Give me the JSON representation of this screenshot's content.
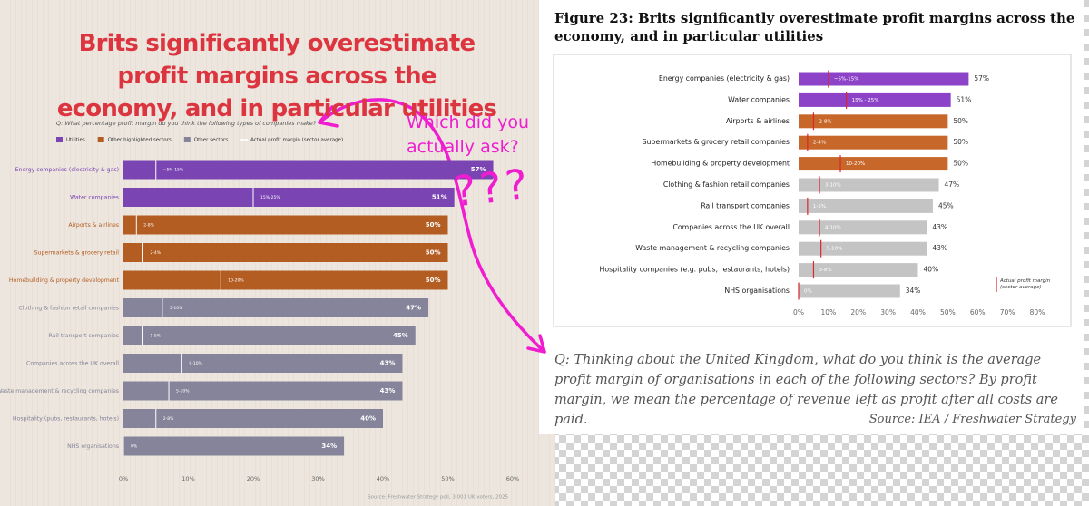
{
  "chart_data": [
    {
      "type": "bar",
      "horizontal": true,
      "title": "Brits significantly overestimate profit margins across the economy, and in particular utilities",
      "subtitle": "Q: What percentage profit margin do you think the following types of companies make?",
      "legend": [
        {
          "name": "Utilities",
          "color": "#7a45b3"
        },
        {
          "name": "Other highlighted sectors",
          "color": "#b35d22"
        },
        {
          "name": "Other sectors",
          "color": "#85849a"
        },
        {
          "name": "Actual profit margin (sector average)",
          "color": "#ffffff"
        }
      ],
      "categories": [
        "Energy companies (electricity & gas)",
        "Water companies",
        "Airports & airlines",
        "Supermarkets & grocery retail",
        "Homebuilding & property development",
        "Clothing & fashion retail companies",
        "Rail transport companies",
        "Companies across the UK overall",
        "Waste management & recycling companies",
        "Hospitality (pubs, restaurants, hotels)",
        "NHS organisations"
      ],
      "values": [
        57,
        51,
        50,
        50,
        50,
        47,
        45,
        43,
        43,
        40,
        34
      ],
      "value_labels": [
        "57%",
        "51%",
        "50%",
        "50%",
        "50%",
        "47%",
        "45%",
        "43%",
        "43%",
        "40%",
        "34%"
      ],
      "range_labels": [
        "~5%-15%",
        "15%-25%",
        "2-8%",
        "2-4%",
        "10-20%",
        "5-10%",
        "1-5%",
        "9-10%",
        "5-10%",
        "2-8%",
        "0%"
      ],
      "actual_margin": [
        5,
        20,
        2,
        3,
        15,
        6,
        3,
        9,
        7,
        5,
        0
      ],
      "colors": [
        "#7a45b3",
        "#7a45b3",
        "#b35d22",
        "#b35d22",
        "#b35d22",
        "#85849a",
        "#85849a",
        "#85849a",
        "#85849a",
        "#85849a",
        "#85849a"
      ],
      "marker_color": "#ffffff",
      "xlim": [
        0,
        60
      ],
      "xticks": [
        {
          "value": 0,
          "label": "0%"
        },
        {
          "value": 10,
          "label": "10%"
        },
        {
          "value": 20,
          "label": "20%"
        },
        {
          "value": 30,
          "label": "30%"
        },
        {
          "value": 40,
          "label": "40%"
        },
        {
          "value": 50,
          "label": "50%"
        },
        {
          "value": 60,
          "label": "60%"
        }
      ],
      "grid": false,
      "source": "Source: Freshwater Strategy poll, 3,001 UK voters, 2025"
    },
    {
      "type": "bar",
      "horizontal": true,
      "title": "Figure 23: Brits significantly overestimate profit margins across the economy, and in particular utilities",
      "legend": [
        {
          "name": "Actual profit margin (sector average)",
          "color": "#d9262c"
        }
      ],
      "categories": [
        "Energy companies (electricity & gas)",
        "Water companies",
        "Airports & airlines",
        "Supermarkets & grocery retail companies",
        "Homebuilding & property development",
        "Clothing & fashion retail companies",
        "Rail transport companies",
        "Companies across the UK overall",
        "Waste management & recycling companies",
        "Hospitality companies (e.g. pubs, restaurants, hotels)",
        "NHS organisations"
      ],
      "values": [
        57,
        51,
        50,
        50,
        50,
        47,
        45,
        43,
        43,
        40,
        34
      ],
      "value_labels": [
        "57%",
        "51%",
        "50%",
        "50%",
        "50%",
        "47%",
        "45%",
        "43%",
        "43%",
        "40%",
        "34%"
      ],
      "range_labels": [
        "~5%-15%",
        "15% - 25%",
        "2-8%",
        "2-4%",
        "10-20%",
        "3-10%",
        "1-5%",
        "4-10%",
        "5-10%",
        "3-8%",
        "0%"
      ],
      "actual_margin": [
        10,
        16,
        5,
        3,
        14,
        7,
        3,
        7,
        7.5,
        5,
        0
      ],
      "colors": [
        "#8c43c8",
        "#8c43c8",
        "#c7682a",
        "#c7682a",
        "#c7682a",
        "#c4c4c4",
        "#c4c4c4",
        "#c4c4c4",
        "#c4c4c4",
        "#c4c4c4",
        "#c4c4c4"
      ],
      "marker_color": "#d9262c",
      "xlim": [
        0,
        80
      ],
      "xticks": [
        {
          "value": 0,
          "label": "0%"
        },
        {
          "value": 10,
          "label": "10%"
        },
        {
          "value": 20,
          "label": "20%"
        },
        {
          "value": 30,
          "label": "30%"
        },
        {
          "value": 40,
          "label": "40%"
        },
        {
          "value": 50,
          "label": "50%"
        },
        {
          "value": 60,
          "label": "60%"
        },
        {
          "value": 70,
          "label": "70%"
        },
        {
          "value": 80,
          "label": "80%"
        }
      ],
      "grid": false,
      "question": "Q: Thinking about the United Kingdom, what do you think is the average profit margin of organisations in each of the following sectors? By profit margin, we mean the percentage of revenue left as profit after all costs are paid.",
      "source": "Source: IEA / Freshwater Strategy"
    }
  ],
  "annotations": [
    "Which did you actually ask?",
    "???"
  ]
}
